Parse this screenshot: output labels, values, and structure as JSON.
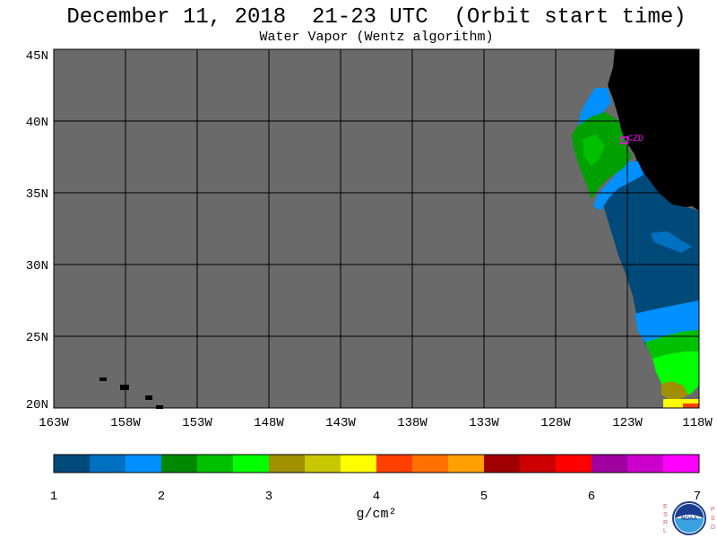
{
  "header": {
    "title": "December 11, 2018  21-23 UTC  (Orbit start time)",
    "subtitle": "Water Vapor (Wentz algorithm)"
  },
  "map": {
    "lat_labels": [
      "45N",
      "40N",
      "35N",
      "30N",
      "25N",
      "20N"
    ],
    "lon_labels": [
      "163W",
      "158W",
      "153W",
      "148W",
      "143W",
      "138W",
      "133W",
      "128W",
      "123W",
      "118W"
    ],
    "station_label": "CZD",
    "colors": {
      "no_data": "#6a6a6a",
      "land": "#000000",
      "grid": "#000000",
      "station": "#ff00ff"
    }
  },
  "colorbar": {
    "tick_labels": [
      "1",
      "2",
      "3",
      "4",
      "5",
      "6",
      "7"
    ],
    "units_label": "g/cm²",
    "colors": [
      "#004a7a",
      "#0070c0",
      "#0090ff",
      "#008800",
      "#00c000",
      "#00ff00",
      "#a09000",
      "#c8c800",
      "#ffff00",
      "#ff4000",
      "#ff7000",
      "#ffa000",
      "#a00000",
      "#cc0000",
      "#ff0000",
      "#a000a0",
      "#cc00cc",
      "#ff00ff"
    ]
  },
  "logo": {
    "left_letters": "ESRL",
    "right_letters": "PSD",
    "center_text": "NOAA"
  }
}
